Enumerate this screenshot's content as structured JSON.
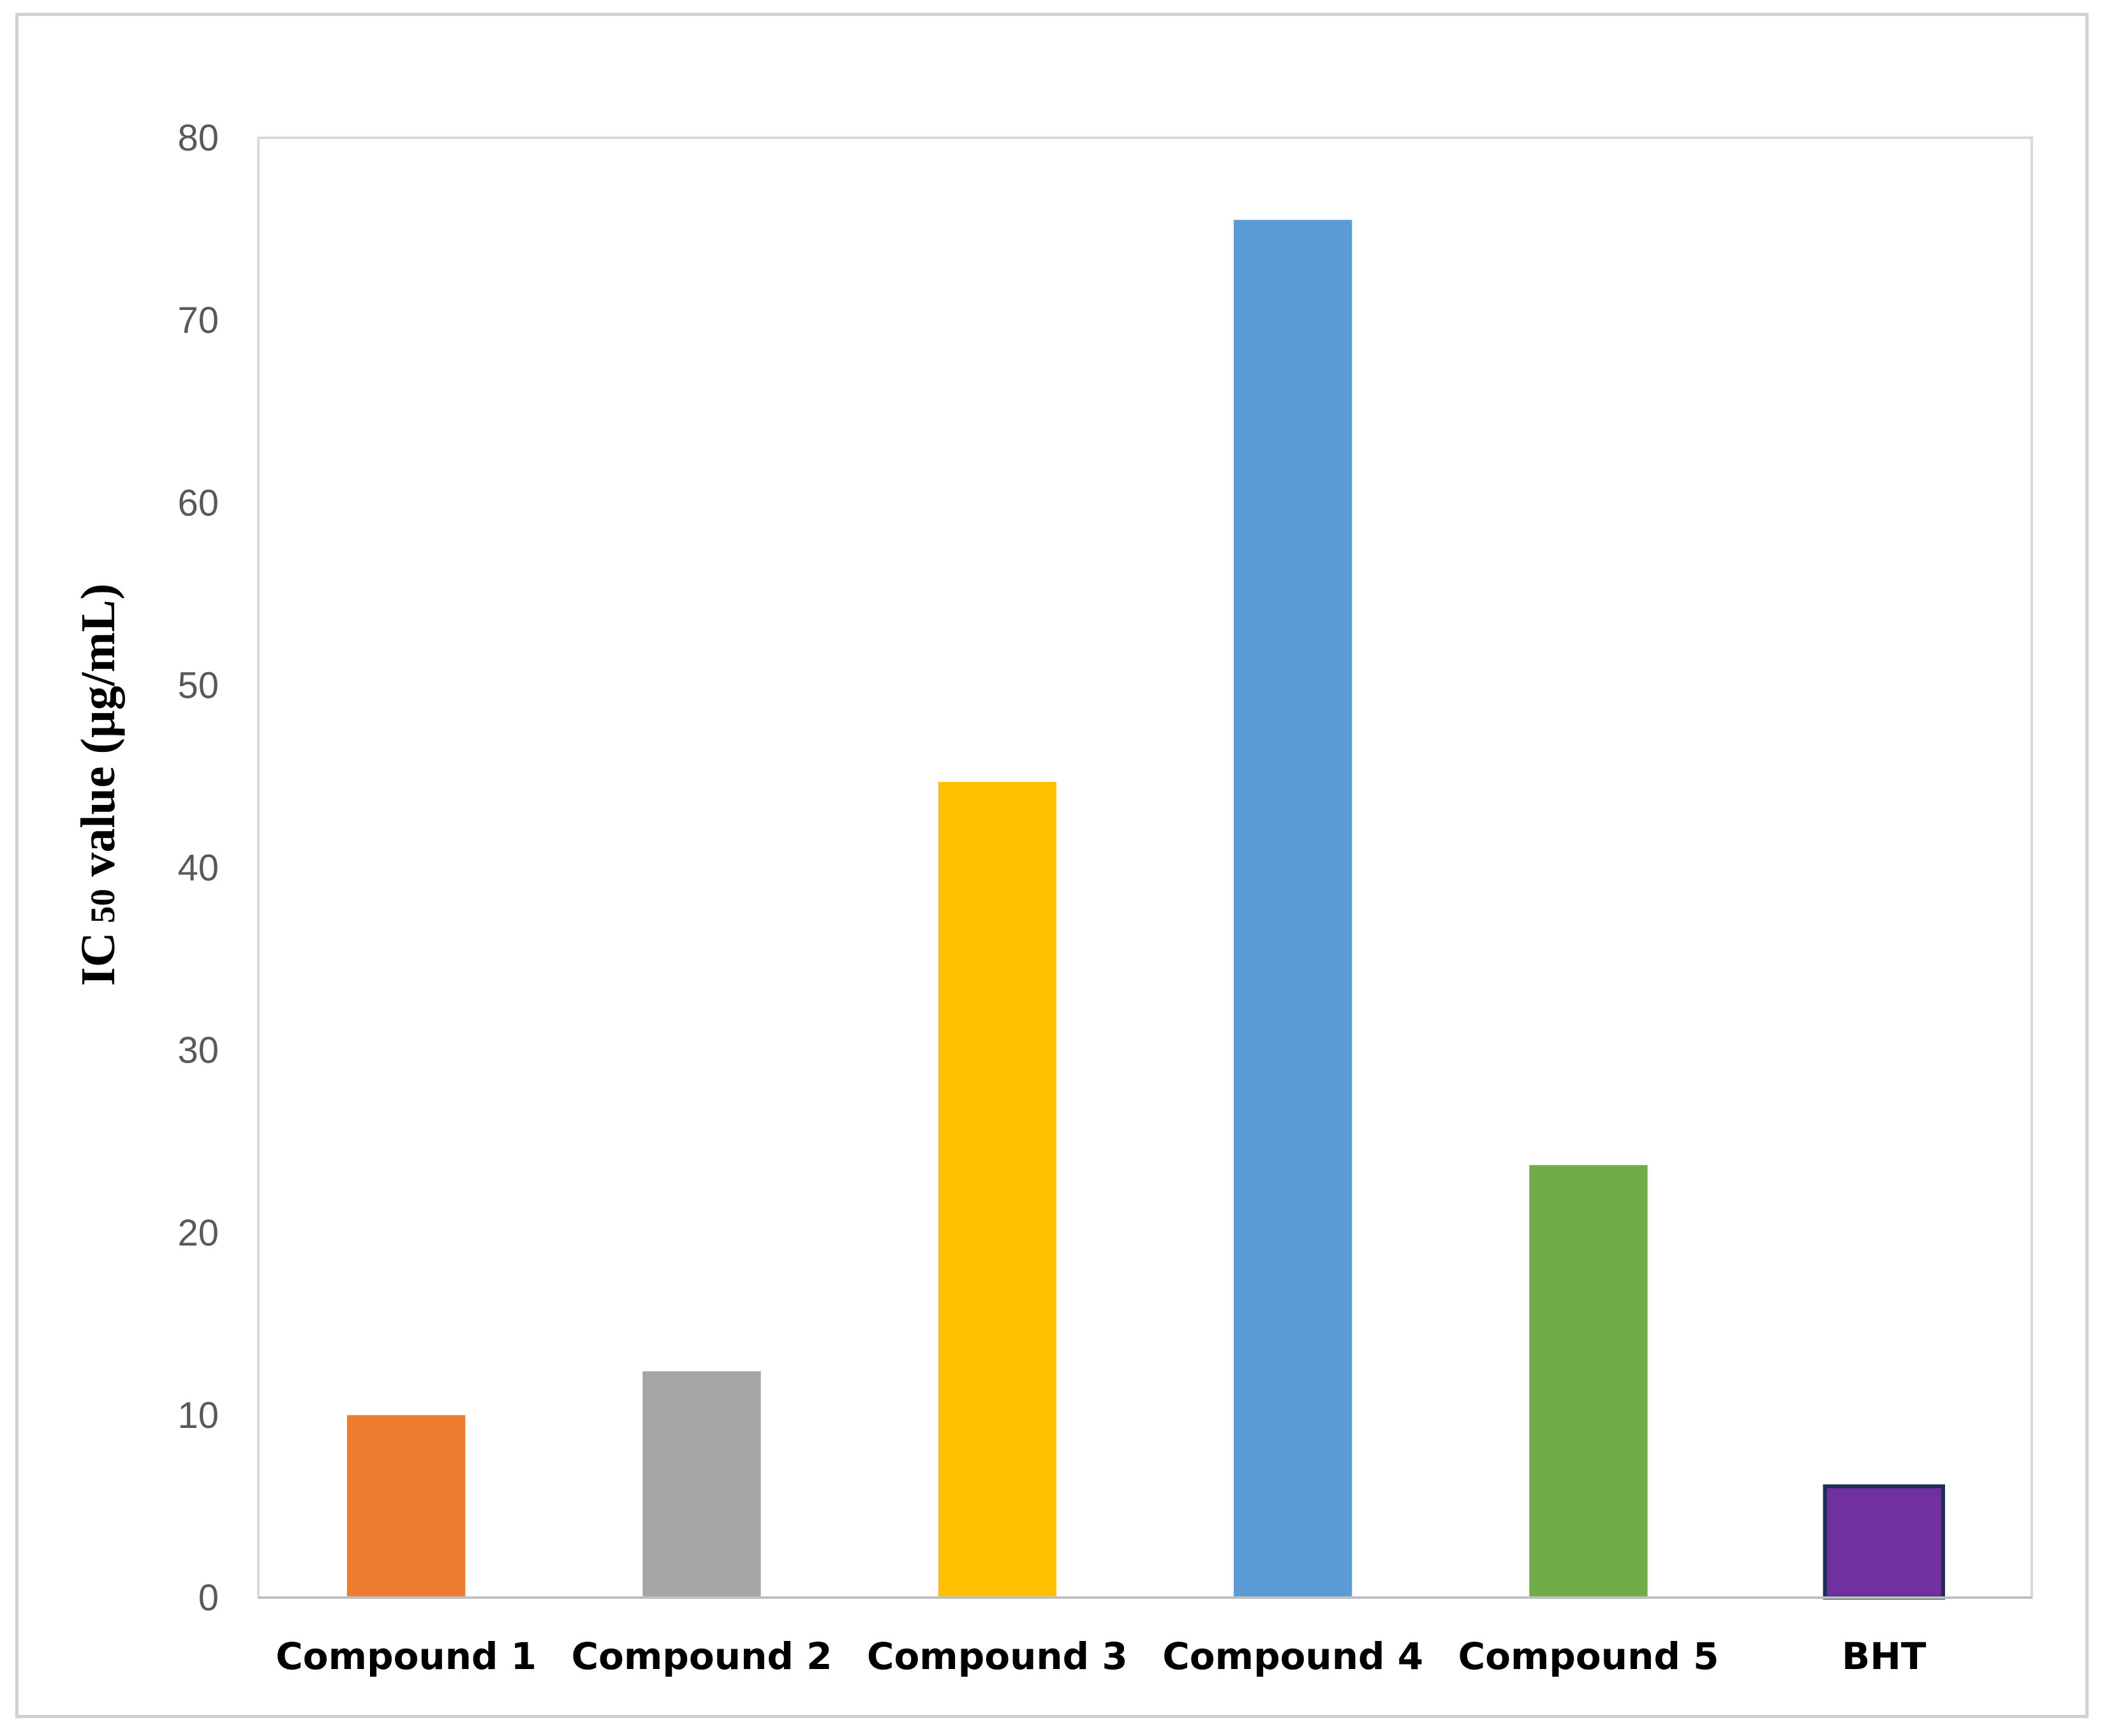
{
  "chart_data": {
    "type": "bar",
    "categories": [
      "Compound 1",
      "Compound 2",
      "Compound 3",
      "Compound 4",
      "Compound 5",
      "BHT"
    ],
    "values": [
      10.0,
      12.4,
      44.7,
      75.5,
      23.7,
      6.1
    ],
    "colors": [
      "#ED7D31",
      "#A5A5A5",
      "#FFC000",
      "#5B9BD5",
      "#70AD47",
      "#7030A0"
    ],
    "bar_outline": [
      null,
      null,
      null,
      null,
      null,
      "#1F2D5A"
    ],
    "ylabel": {
      "main": "IC",
      "sub": "50",
      "rest": " value (µg/mL)"
    },
    "xlabel": "",
    "title": "",
    "ylim": [
      0,
      80
    ],
    "yticks": [
      0,
      10,
      20,
      30,
      40,
      50,
      60,
      70,
      80
    ],
    "grid": false,
    "legend": "none"
  }
}
